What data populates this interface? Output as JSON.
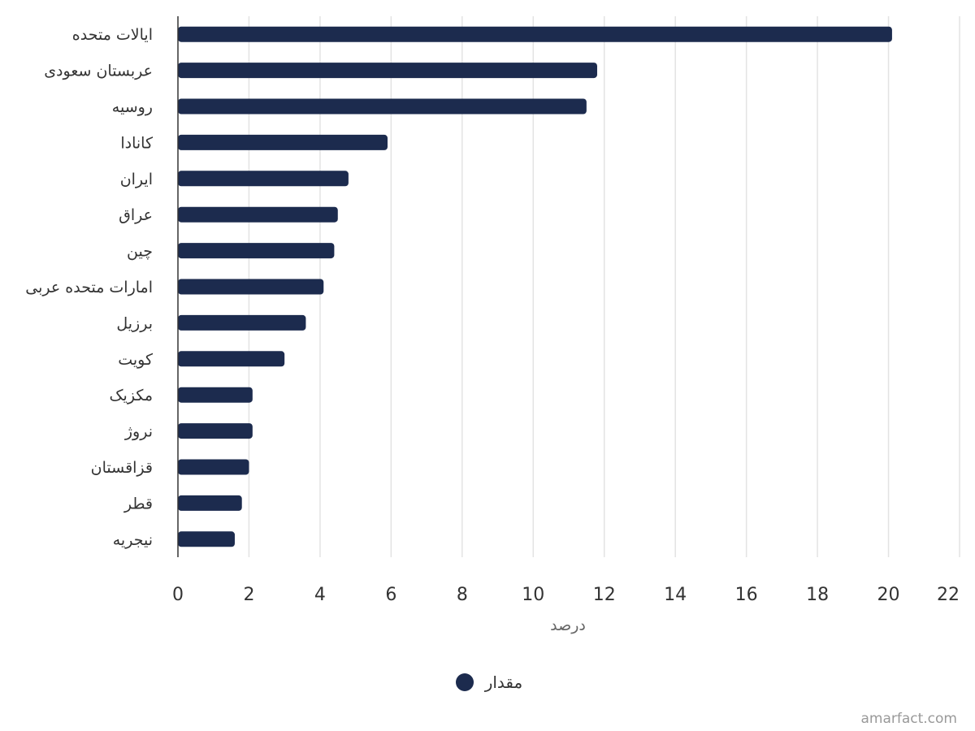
{
  "chart_data": {
    "type": "bar",
    "orientation": "horizontal",
    "categories": [
      "ایالات متحده",
      "عربستان سعودی",
      "روسیه",
      "کانادا",
      "ایران",
      "عراق",
      "چین",
      "امارات متحده عربی",
      "برزیل",
      "کویت",
      "مکزیک",
      "نروژ",
      "قزاقستان",
      "قطر",
      "نیجریه"
    ],
    "series": [
      {
        "name": "مقدار",
        "values": [
          20.1,
          11.8,
          11.5,
          5.9,
          4.8,
          4.5,
          4.4,
          4.1,
          3.6,
          3.0,
          2.1,
          2.1,
          2.0,
          1.8,
          1.6
        ]
      }
    ],
    "xlabel": "درصد",
    "ylabel": "",
    "xlim": [
      0,
      22
    ],
    "xticks": [
      0,
      2,
      4,
      6,
      8,
      10,
      12,
      14,
      16,
      18,
      20,
      22
    ],
    "grid": true,
    "legend_position": "bottom-center",
    "bar_color": "#1c2b4e"
  },
  "credit": "amarfact.com"
}
